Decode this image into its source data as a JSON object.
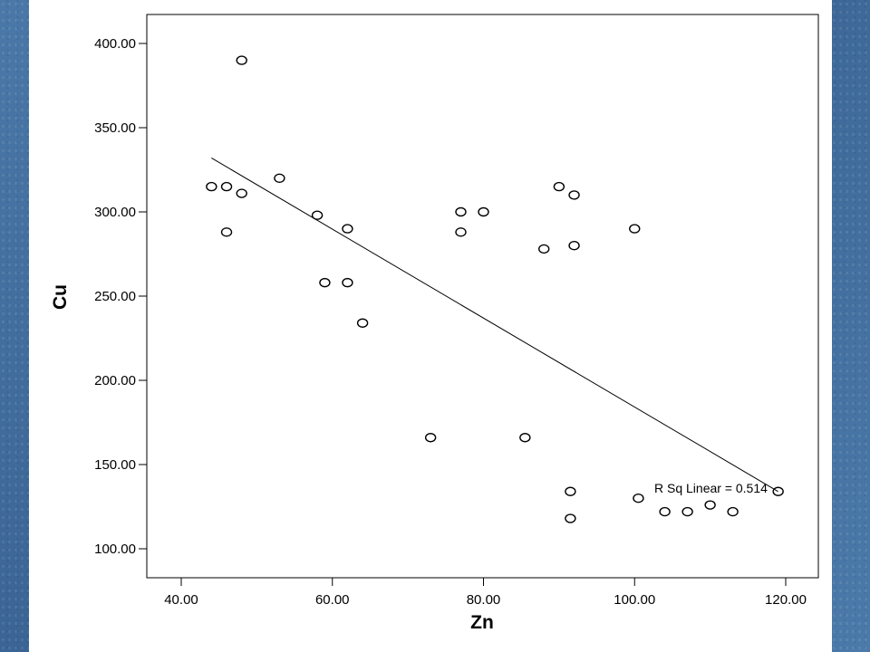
{
  "chart_data": {
    "type": "scatter",
    "xlabel": "Zn",
    "ylabel": "Cu",
    "xlim": [
      35,
      122
    ],
    "ylim": [
      83,
      417
    ],
    "x_ticks": [
      40,
      60,
      80,
      100,
      120
    ],
    "y_ticks": [
      100,
      150,
      200,
      250,
      300,
      350,
      400
    ],
    "x_tick_labels": [
      "40.00",
      "60.00",
      "80.00",
      "100.00",
      "120.00"
    ],
    "y_tick_labels": [
      "100.00",
      "150.00",
      "200.00",
      "250.00",
      "300.00",
      "350.00",
      "400.00"
    ],
    "grid": false,
    "points": [
      {
        "x": 48,
        "y": 390
      },
      {
        "x": 44,
        "y": 315
      },
      {
        "x": 46,
        "y": 315
      },
      {
        "x": 48,
        "y": 311
      },
      {
        "x": 46,
        "y": 288
      },
      {
        "x": 53,
        "y": 320
      },
      {
        "x": 58,
        "y": 298
      },
      {
        "x": 62,
        "y": 290
      },
      {
        "x": 59,
        "y": 258
      },
      {
        "x": 62,
        "y": 258
      },
      {
        "x": 64,
        "y": 234
      },
      {
        "x": 77,
        "y": 300
      },
      {
        "x": 77,
        "y": 288
      },
      {
        "x": 80,
        "y": 300
      },
      {
        "x": 73,
        "y": 166
      },
      {
        "x": 85.5,
        "y": 166
      },
      {
        "x": 88,
        "y": 278
      },
      {
        "x": 90,
        "y": 315
      },
      {
        "x": 92,
        "y": 310
      },
      {
        "x": 92,
        "y": 280
      },
      {
        "x": 100,
        "y": 290
      },
      {
        "x": 91.5,
        "y": 134
      },
      {
        "x": 91.5,
        "y": 118
      },
      {
        "x": 100.5,
        "y": 130
      },
      {
        "x": 104,
        "y": 122
      },
      {
        "x": 107,
        "y": 122
      },
      {
        "x": 110,
        "y": 126
      },
      {
        "x": 113,
        "y": 122
      },
      {
        "x": 119,
        "y": 134
      }
    ],
    "fit_line": {
      "x1": 44,
      "y1": 332,
      "x2": 119,
      "y2": 134
    },
    "annotation": "R Sq Linear = 0.514"
  }
}
